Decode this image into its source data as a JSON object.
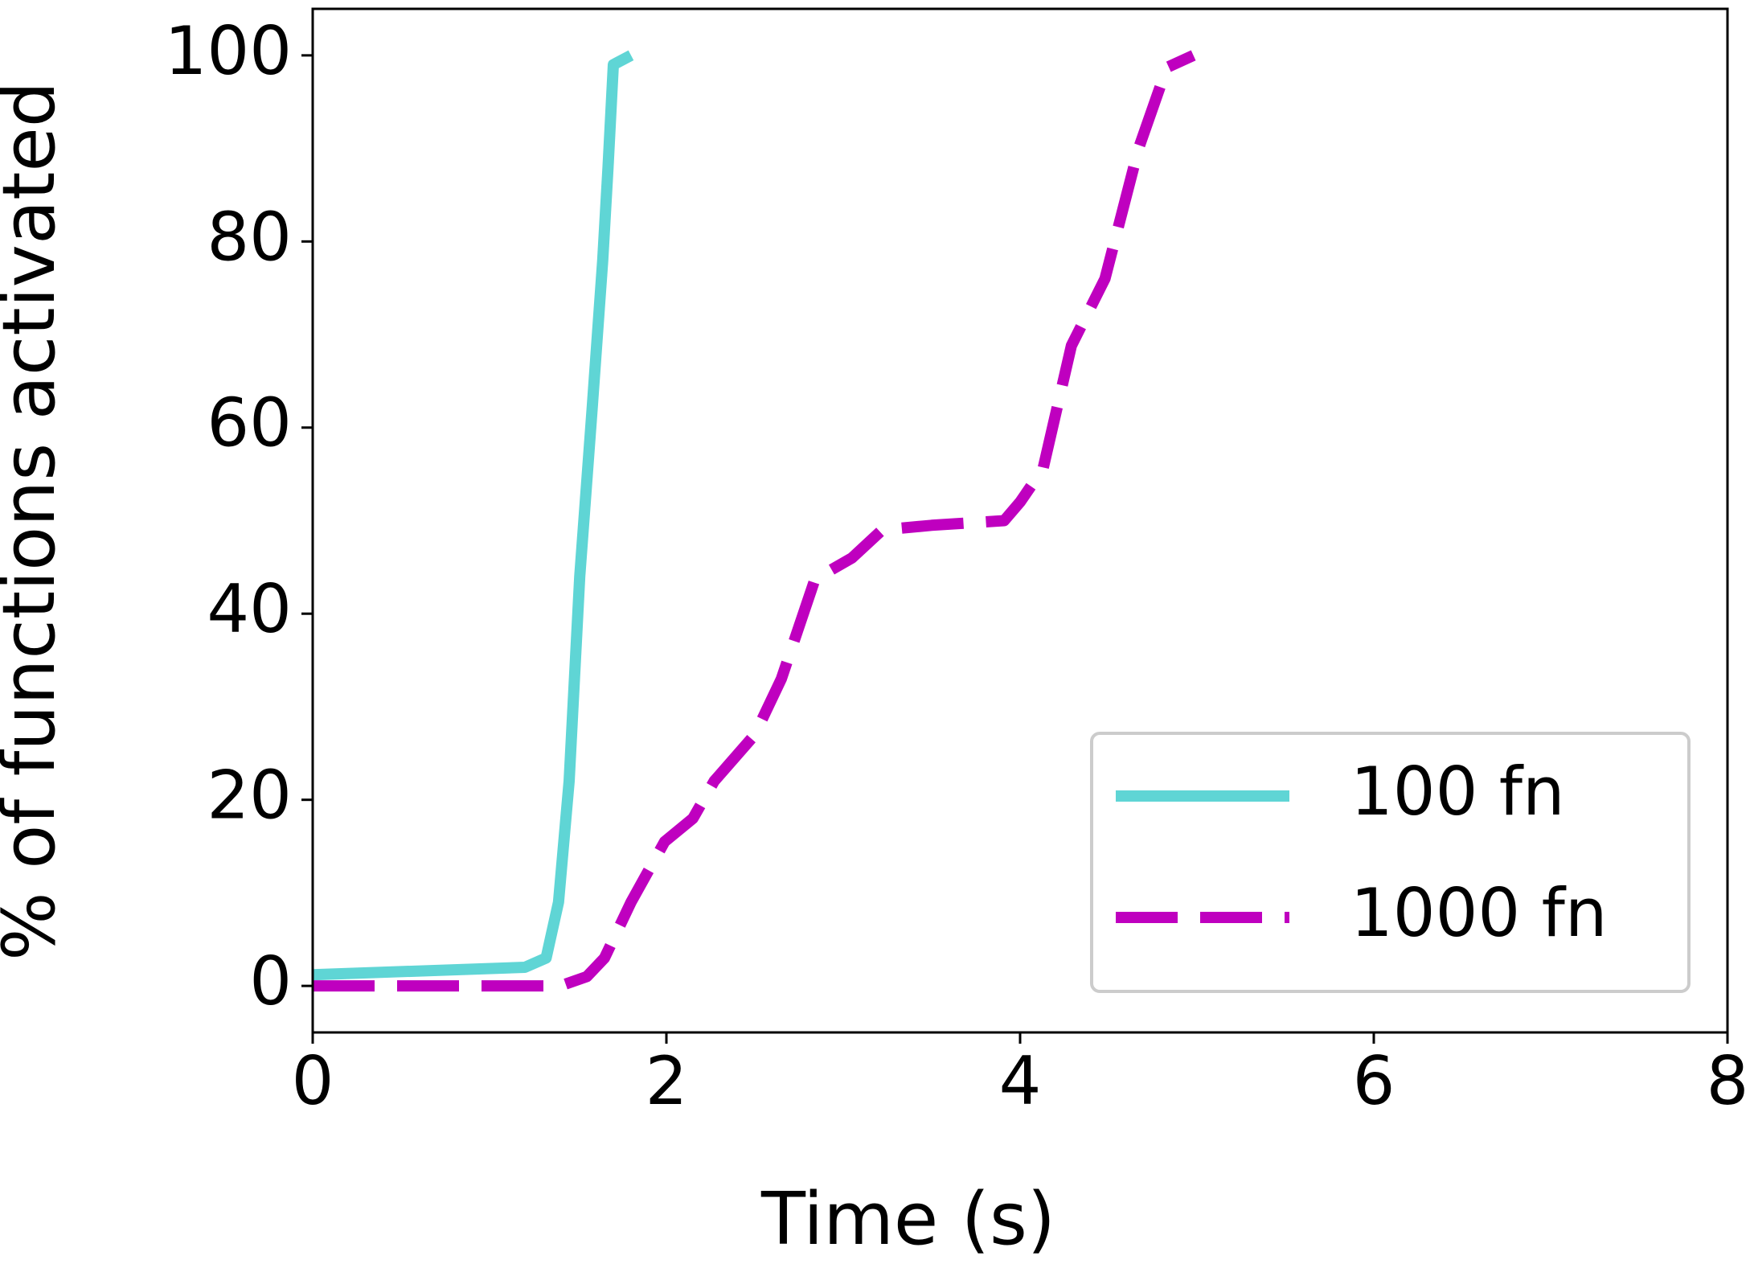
{
  "chart_data": {
    "type": "line",
    "xlabel": "Time (s)",
    "ylabel": "% of functions activated",
    "xlim": [
      0,
      8
    ],
    "xticks": [
      0,
      2,
      4,
      6,
      8
    ],
    "ylim": [
      -5,
      105
    ],
    "yticks": [
      0,
      20,
      40,
      60,
      80,
      100
    ],
    "grid": false,
    "legend": "lower right",
    "series": [
      {
        "name": "100 fn",
        "color": "#5fd5d5",
        "linestyle": "solid",
        "x": [
          0,
          1.2,
          1.32,
          1.39,
          1.45,
          1.51,
          1.58,
          1.64,
          1.67,
          1.7,
          1.8
        ],
        "values": [
          1.2,
          2,
          3,
          9,
          22,
          44,
          62,
          78,
          88,
          99,
          100
        ]
      },
      {
        "name": "1000 fn",
        "color": "#bf00bf",
        "linestyle": "dashed",
        "x": [
          0,
          1.4,
          1.55,
          1.65,
          1.8,
          1.99,
          2.15,
          2.27,
          2.5,
          2.65,
          2.84,
          3.05,
          3.22,
          3.5,
          3.91,
          4.0,
          4.13,
          4.29,
          4.48,
          4.67,
          4.83,
          4.98
        ],
        "values": [
          0,
          0,
          1,
          3,
          9,
          15.5,
          18,
          22,
          27,
          33,
          43.7,
          46,
          49,
          49.5,
          50,
          52,
          55.6,
          68.8,
          76,
          90,
          98.7,
          100
        ]
      }
    ]
  }
}
